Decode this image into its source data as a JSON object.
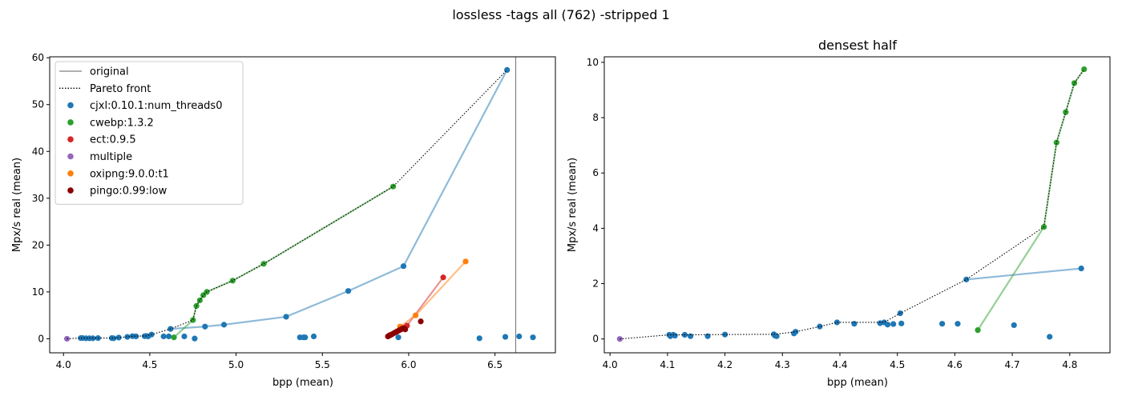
{
  "figure": {
    "suptitle": "lossless -tags all (762) -stripped 1"
  },
  "colors": {
    "cjxl": "#1f77b4",
    "cwebp": "#2ca02c",
    "ect": "#d62728",
    "multiple": "#9467bd",
    "oxipng": "#ff7f0e",
    "pingo": "#8b0000",
    "original": "#808080",
    "pareto": "#000000"
  },
  "chart_data": [
    {
      "type": "scatter",
      "title": "",
      "xlabel": "bpp (mean)",
      "ylabel": "Mpx/s real (mean)",
      "xlim": [
        3.92,
        6.85
      ],
      "ylim": [
        -3.0,
        60.2
      ],
      "xticks": [
        4.0,
        4.5,
        5.0,
        5.5,
        6.0,
        6.5
      ],
      "xtick_labels": [
        "4.0",
        "4.5",
        "5.0",
        "5.5",
        "6.0",
        "6.5"
      ],
      "yticks": [
        0,
        10,
        20,
        30,
        40,
        50,
        60
      ],
      "ytick_labels": [
        "0",
        "10",
        "20",
        "30",
        "40",
        "50",
        "60"
      ],
      "legend_position": "upper-left",
      "legend": [
        {
          "label": "original",
          "kind": "vline",
          "color_key": "original"
        },
        {
          "label": "Pareto front",
          "kind": "dotted",
          "color_key": "pareto"
        },
        {
          "label": "cjxl:0.10.1:num_threads0",
          "kind": "dot",
          "color_key": "cjxl"
        },
        {
          "label": "cwebp:1.3.2",
          "kind": "dot",
          "color_key": "cwebp"
        },
        {
          "label": "ect:0.9.5",
          "kind": "dot",
          "color_key": "ect"
        },
        {
          "label": "multiple",
          "kind": "dot",
          "color_key": "multiple"
        },
        {
          "label": "oxipng:9.0.0:t1",
          "kind": "dot",
          "color_key": "oxipng"
        },
        {
          "label": "pingo:0.99:low",
          "kind": "dot",
          "color_key": "pingo"
        }
      ],
      "original_bpp": 6.62,
      "lines": [
        {
          "color_key": "cjxl",
          "points": [
            [
              4.62,
              2.1
            ],
            [
              4.82,
              2.6
            ],
            [
              4.93,
              3.0
            ],
            [
              5.29,
              4.7
            ],
            [
              5.65,
              10.2
            ],
            [
              5.97,
              15.5
            ],
            [
              6.57,
              57.4
            ]
          ]
        },
        {
          "color_key": "cwebp",
          "points": [
            [
              4.64,
              0.3
            ],
            [
              4.75,
              4.0
            ],
            [
              4.77,
              7.0
            ],
            [
              4.79,
              8.2
            ],
            [
              4.81,
              9.3
            ],
            [
              4.83,
              10.0
            ],
            [
              4.98,
              12.4
            ],
            [
              5.16,
              16.0
            ],
            [
              5.91,
              32.5
            ]
          ]
        },
        {
          "color_key": "ect",
          "points": [
            [
              5.88,
              0.5
            ],
            [
              5.93,
              1.5
            ],
            [
              5.99,
              2.8
            ],
            [
              6.2,
              13.1
            ]
          ]
        },
        {
          "color_key": "oxipng",
          "points": [
            [
              5.89,
              0.8
            ],
            [
              5.95,
              2.6
            ],
            [
              6.04,
              5.0
            ],
            [
              6.33,
              16.5
            ]
          ]
        }
      ],
      "pareto": [
        [
          4.02,
          0.0
        ],
        [
          4.1,
          0.15
        ],
        [
          4.11,
          0.15
        ],
        [
          4.13,
          0.15
        ],
        [
          4.2,
          0.15
        ],
        [
          4.29,
          0.15
        ],
        [
          4.32,
          0.25
        ],
        [
          4.37,
          0.4
        ],
        [
          4.4,
          0.55
        ],
        [
          4.48,
          0.6
        ],
        [
          4.51,
          0.9
        ],
        [
          4.62,
          2.1
        ],
        [
          4.75,
          4.0
        ],
        [
          4.77,
          7.0
        ],
        [
          4.79,
          8.2
        ],
        [
          4.81,
          9.3
        ],
        [
          4.83,
          10.0
        ],
        [
          4.98,
          12.4
        ],
        [
          5.16,
          16.0
        ],
        [
          5.91,
          32.5
        ],
        [
          6.57,
          57.4
        ]
      ],
      "points": [
        {
          "color_key": "cjxl",
          "xy": [
            [
              4.1,
              0.15
            ],
            [
              4.11,
              0.15
            ],
            [
              4.13,
              0.1
            ],
            [
              4.15,
              0.1
            ],
            [
              4.17,
              0.1
            ],
            [
              4.2,
              0.15
            ],
            [
              4.28,
              0.15
            ],
            [
              4.29,
              0.1
            ],
            [
              4.32,
              0.25
            ],
            [
              4.37,
              0.4
            ],
            [
              4.4,
              0.55
            ],
            [
              4.42,
              0.5
            ],
            [
              4.47,
              0.55
            ],
            [
              4.48,
              0.6
            ],
            [
              4.49,
              0.5
            ],
            [
              4.51,
              0.9
            ],
            [
              4.58,
              0.5
            ],
            [
              4.61,
              0.5
            ],
            [
              4.62,
              2.1
            ],
            [
              4.7,
              0.5
            ],
            [
              4.76,
              0.05
            ],
            [
              4.82,
              2.6
            ],
            [
              4.93,
              3.0
            ],
            [
              5.29,
              4.7
            ],
            [
              5.37,
              0.3
            ],
            [
              5.39,
              0.3
            ],
            [
              5.4,
              0.3
            ],
            [
              5.45,
              0.5
            ],
            [
              5.65,
              10.2
            ],
            [
              5.94,
              0.3
            ],
            [
              5.97,
              15.5
            ],
            [
              6.41,
              0.1
            ],
            [
              6.56,
              0.4
            ],
            [
              6.57,
              57.4
            ],
            [
              6.64,
              0.5
            ],
            [
              6.72,
              0.3
            ]
          ]
        },
        {
          "color_key": "cwebp",
          "xy": [
            [
              4.64,
              0.3
            ],
            [
              4.75,
              4.0
            ],
            [
              4.77,
              7.0
            ],
            [
              4.79,
              8.2
            ],
            [
              4.81,
              9.3
            ],
            [
              4.83,
              10.0
            ],
            [
              4.98,
              12.4
            ],
            [
              5.16,
              16.0
            ],
            [
              5.91,
              32.5
            ]
          ]
        },
        {
          "color_key": "ect",
          "xy": [
            [
              5.88,
              0.5
            ],
            [
              5.93,
              1.5
            ],
            [
              5.99,
              2.8
            ],
            [
              6.2,
              13.1
            ]
          ]
        },
        {
          "color_key": "multiple",
          "xy": [
            [
              4.02,
              0.0
            ]
          ]
        },
        {
          "color_key": "oxipng",
          "xy": [
            [
              5.89,
              0.8
            ],
            [
              5.95,
              2.6
            ],
            [
              6.04,
              5.0
            ],
            [
              6.33,
              16.5
            ]
          ]
        },
        {
          "color_key": "pingo",
          "xy": [
            [
              5.88,
              0.5
            ],
            [
              5.89,
              0.7
            ],
            [
              5.9,
              0.9
            ],
            [
              5.91,
              1.1
            ],
            [
              5.92,
              1.3
            ],
            [
              5.93,
              1.5
            ],
            [
              5.94,
              1.7
            ],
            [
              5.95,
              1.9
            ],
            [
              5.96,
              2.1
            ],
            [
              5.97,
              2.3
            ],
            [
              5.98,
              2.0
            ],
            [
              6.07,
              3.7
            ]
          ]
        }
      ]
    },
    {
      "type": "scatter",
      "title": "densest half",
      "xlabel": "bpp (mean)",
      "ylabel": "Mpx/s real (mean)",
      "xlim": [
        3.99,
        4.87
      ],
      "ylim": [
        -0.5,
        10.2
      ],
      "xticks": [
        4.0,
        4.1,
        4.2,
        4.3,
        4.4,
        4.5,
        4.6,
        4.7,
        4.8
      ],
      "xtick_labels": [
        "4.0",
        "4.1",
        "4.2",
        "4.3",
        "4.4",
        "4.5",
        "4.6",
        "4.7",
        "4.8"
      ],
      "yticks": [
        0,
        2,
        4,
        6,
        8,
        10
      ],
      "ytick_labels": [
        "0",
        "2",
        "4",
        "6",
        "8",
        "10"
      ],
      "lines": [
        {
          "color_key": "cjxl",
          "points": [
            [
              4.62,
              2.15
            ],
            [
              4.82,
              2.55
            ]
          ]
        },
        {
          "color_key": "cwebp",
          "points": [
            [
              4.64,
              0.32
            ],
            [
              4.755,
              4.05
            ],
            [
              4.777,
              7.1
            ],
            [
              4.793,
              8.2
            ],
            [
              4.808,
              9.25
            ],
            [
              4.825,
              9.75
            ]
          ]
        }
      ],
      "pareto": [
        [
          4.017,
          0.0
        ],
        [
          4.103,
          0.15
        ],
        [
          4.11,
          0.15
        ],
        [
          4.13,
          0.15
        ],
        [
          4.2,
          0.16
        ],
        [
          4.287,
          0.17
        ],
        [
          4.323,
          0.26
        ],
        [
          4.365,
          0.45
        ],
        [
          4.395,
          0.6
        ],
        [
          4.477,
          0.6
        ],
        [
          4.505,
          0.93
        ],
        [
          4.62,
          2.15
        ],
        [
          4.755,
          4.05
        ],
        [
          4.777,
          7.1
        ],
        [
          4.793,
          8.2
        ],
        [
          4.808,
          9.25
        ],
        [
          4.825,
          9.75
        ]
      ],
      "points": [
        {
          "color_key": "cjxl",
          "xy": [
            [
              4.103,
              0.15
            ],
            [
              4.105,
              0.1
            ],
            [
              4.11,
              0.15
            ],
            [
              4.113,
              0.12
            ],
            [
              4.13,
              0.15
            ],
            [
              4.14,
              0.1
            ],
            [
              4.17,
              0.1
            ],
            [
              4.2,
              0.16
            ],
            [
              4.285,
              0.17
            ],
            [
              4.287,
              0.12
            ],
            [
              4.29,
              0.1
            ],
            [
              4.32,
              0.2
            ],
            [
              4.323,
              0.26
            ],
            [
              4.365,
              0.45
            ],
            [
              4.395,
              0.6
            ],
            [
              4.425,
              0.55
            ],
            [
              4.47,
              0.57
            ],
            [
              4.477,
              0.6
            ],
            [
              4.483,
              0.52
            ],
            [
              4.493,
              0.54
            ],
            [
              4.505,
              0.93
            ],
            [
              4.507,
              0.56
            ],
            [
              4.578,
              0.55
            ],
            [
              4.605,
              0.55
            ],
            [
              4.62,
              2.15
            ],
            [
              4.703,
              0.5
            ],
            [
              4.765,
              0.08
            ],
            [
              4.82,
              2.55
            ]
          ]
        },
        {
          "color_key": "cwebp",
          "xy": [
            [
              4.64,
              0.32
            ],
            [
              4.755,
              4.05
            ],
            [
              4.777,
              7.1
            ],
            [
              4.793,
              8.2
            ],
            [
              4.808,
              9.25
            ],
            [
              4.825,
              9.75
            ]
          ]
        },
        {
          "color_key": "multiple",
          "xy": [
            [
              4.017,
              0.0
            ]
          ]
        }
      ]
    }
  ]
}
